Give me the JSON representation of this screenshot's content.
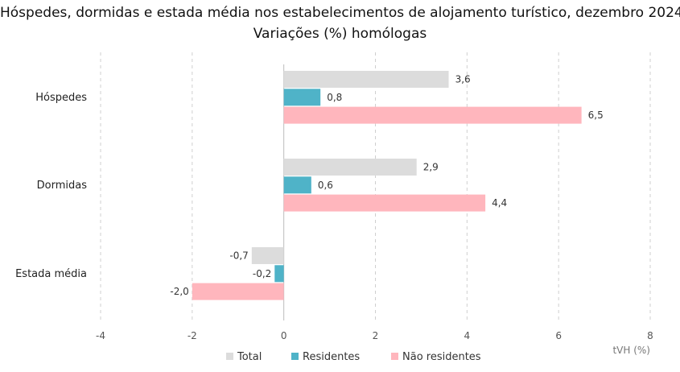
{
  "chart_data": {
    "type": "bar",
    "orientation": "horizontal",
    "title": "Hóspedes, dormidas e estada média nos estabelecimentos de alojamento turístico, dezembro 2024",
    "subtitle": "Variações (%) homólogas",
    "categories": [
      "Hóspedes",
      "Dormidas",
      "Estada média"
    ],
    "series": [
      {
        "name": "Total",
        "color": "#dcdcdc",
        "values": [
          3.6,
          2.9,
          -0.7
        ],
        "labels": [
          "3,6",
          "2,9",
          "-0,7"
        ]
      },
      {
        "name": "Residentes",
        "color": "#4fb3c8",
        "values": [
          0.8,
          0.6,
          -0.2
        ],
        "labels": [
          "0,8",
          "0,6",
          "-0,2"
        ]
      },
      {
        "name": "Não residentes",
        "color": "#ffb6bd",
        "values": [
          6.5,
          4.4,
          -2.0
        ],
        "labels": [
          "6,5",
          "4,4",
          "-2,0"
        ]
      }
    ],
    "xlim": [
      -4,
      8
    ],
    "xticks": [
      -4,
      -2,
      0,
      2,
      4,
      6,
      8
    ],
    "xunit": "tVH (%)",
    "grid": "vertical dashed",
    "legend_position": "bottom"
  }
}
